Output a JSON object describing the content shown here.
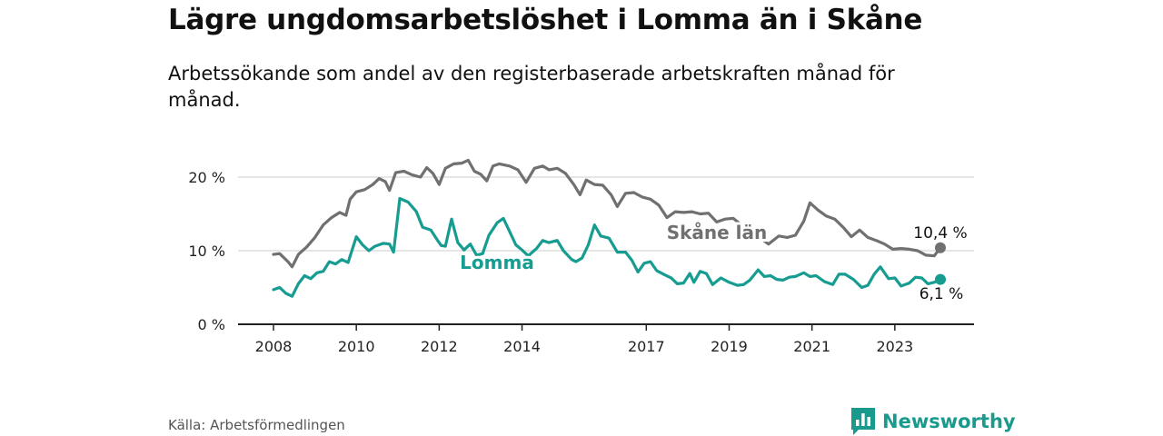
{
  "header": {
    "title": "Lägre ungdomsarbetslöshet i Lomma än i Skåne",
    "subtitle": "Arbetssökande som andel av den registerbaserade arbetskraften månad för månad."
  },
  "footer": {
    "source": "Källa: Arbetsförmedlingen",
    "brand": "Newsworthy"
  },
  "colors": {
    "lomma": "#169c90",
    "skane": "#707070",
    "grid": "#d6d6d6",
    "axis": "#222222",
    "brand": "#1a9a8c"
  },
  "chart_data": {
    "type": "line",
    "xlim": [
      2008,
      2024.5
    ],
    "ylim": [
      0,
      20
    ],
    "y_ticks": [
      0,
      10,
      20
    ],
    "y_tick_labels": [
      "0 %",
      "10 %",
      "20 %"
    ],
    "x_ticks": [
      2008,
      2010,
      2012,
      2014,
      2017,
      2019,
      2021,
      2023
    ],
    "x_tick_labels": [
      "2008",
      "2010",
      "2012",
      "2014",
      "2017",
      "2019",
      "2021",
      "2023"
    ],
    "series": [
      {
        "name": "Skåne län",
        "color_key": "skane",
        "end_label": "10,4 %",
        "points": [
          [
            2008.0,
            9.5
          ],
          [
            2008.15,
            9.6
          ],
          [
            2008.35,
            8.5
          ],
          [
            2008.45,
            7.8
          ],
          [
            2008.6,
            9.5
          ],
          [
            2008.8,
            10.5
          ],
          [
            2009.0,
            11.8
          ],
          [
            2009.2,
            13.5
          ],
          [
            2009.4,
            14.5
          ],
          [
            2009.6,
            15.2
          ],
          [
            2009.75,
            14.8
          ],
          [
            2009.85,
            17.0
          ],
          [
            2010.0,
            18.0
          ],
          [
            2010.2,
            18.3
          ],
          [
            2010.4,
            19.0
          ],
          [
            2010.55,
            19.8
          ],
          [
            2010.7,
            19.4
          ],
          [
            2010.8,
            18.2
          ],
          [
            2010.95,
            20.6
          ],
          [
            2011.15,
            20.8
          ],
          [
            2011.35,
            20.3
          ],
          [
            2011.55,
            20.0
          ],
          [
            2011.7,
            21.3
          ],
          [
            2011.85,
            20.5
          ],
          [
            2012.0,
            19.0
          ],
          [
            2012.15,
            21.2
          ],
          [
            2012.35,
            21.8
          ],
          [
            2012.55,
            21.9
          ],
          [
            2012.7,
            22.3
          ],
          [
            2012.85,
            20.8
          ],
          [
            2013.0,
            20.4
          ],
          [
            2013.15,
            19.5
          ],
          [
            2013.3,
            21.5
          ],
          [
            2013.45,
            21.8
          ],
          [
            2013.7,
            21.5
          ],
          [
            2013.9,
            21.0
          ],
          [
            2014.1,
            19.3
          ],
          [
            2014.3,
            21.2
          ],
          [
            2014.5,
            21.5
          ],
          [
            2014.65,
            21.0
          ],
          [
            2014.85,
            21.2
          ],
          [
            2015.05,
            20.5
          ],
          [
            2015.25,
            19.0
          ],
          [
            2015.4,
            17.6
          ],
          [
            2015.55,
            19.6
          ],
          [
            2015.75,
            19.0
          ],
          [
            2015.95,
            18.9
          ],
          [
            2016.15,
            17.6
          ],
          [
            2016.3,
            16.0
          ],
          [
            2016.5,
            17.8
          ],
          [
            2016.7,
            17.9
          ],
          [
            2016.9,
            17.3
          ],
          [
            2017.1,
            17.0
          ],
          [
            2017.3,
            16.2
          ],
          [
            2017.5,
            14.5
          ],
          [
            2017.7,
            15.3
          ],
          [
            2017.9,
            15.2
          ],
          [
            2018.1,
            15.3
          ],
          [
            2018.3,
            15.0
          ],
          [
            2018.5,
            15.1
          ],
          [
            2018.7,
            13.9
          ],
          [
            2018.9,
            14.3
          ],
          [
            2019.1,
            14.4
          ],
          [
            2019.3,
            13.5
          ],
          [
            2019.5,
            13.6
          ],
          [
            2019.7,
            12.0
          ],
          [
            2019.95,
            10.9
          ],
          [
            2020.2,
            12.0
          ],
          [
            2020.4,
            11.8
          ],
          [
            2020.6,
            12.1
          ],
          [
            2020.8,
            14.0
          ],
          [
            2020.95,
            16.5
          ],
          [
            2021.15,
            15.5
          ],
          [
            2021.35,
            14.7
          ],
          [
            2021.55,
            14.3
          ],
          [
            2021.75,
            13.2
          ],
          [
            2021.95,
            11.9
          ],
          [
            2022.15,
            12.8
          ],
          [
            2022.35,
            11.8
          ],
          [
            2022.55,
            11.4
          ],
          [
            2022.75,
            10.9
          ],
          [
            2022.95,
            10.2
          ],
          [
            2023.15,
            10.3
          ],
          [
            2023.35,
            10.2
          ],
          [
            2023.55,
            10.0
          ],
          [
            2023.75,
            9.4
          ],
          [
            2023.95,
            9.3
          ],
          [
            2024.1,
            10.4
          ]
        ]
      },
      {
        "name": "Lomma",
        "color_key": "lomma",
        "end_label": "6,1 %",
        "points": [
          [
            2008.0,
            4.7
          ],
          [
            2008.15,
            5.0
          ],
          [
            2008.3,
            4.2
          ],
          [
            2008.45,
            3.8
          ],
          [
            2008.6,
            5.5
          ],
          [
            2008.75,
            6.6
          ],
          [
            2008.9,
            6.2
          ],
          [
            2009.05,
            7.0
          ],
          [
            2009.2,
            7.2
          ],
          [
            2009.35,
            8.5
          ],
          [
            2009.5,
            8.2
          ],
          [
            2009.65,
            8.8
          ],
          [
            2009.8,
            8.4
          ],
          [
            2010.0,
            11.9
          ],
          [
            2010.15,
            10.8
          ],
          [
            2010.3,
            10.0
          ],
          [
            2010.45,
            10.6
          ],
          [
            2010.65,
            11.0
          ],
          [
            2010.8,
            10.9
          ],
          [
            2010.9,
            9.8
          ],
          [
            2011.05,
            17.1
          ],
          [
            2011.25,
            16.6
          ],
          [
            2011.45,
            15.3
          ],
          [
            2011.6,
            13.2
          ],
          [
            2011.8,
            12.8
          ],
          [
            2011.95,
            11.5
          ],
          [
            2012.05,
            10.7
          ],
          [
            2012.15,
            10.6
          ],
          [
            2012.3,
            14.3
          ],
          [
            2012.45,
            11.1
          ],
          [
            2012.6,
            10.1
          ],
          [
            2012.75,
            10.9
          ],
          [
            2012.9,
            9.4
          ],
          [
            2013.05,
            9.6
          ],
          [
            2013.2,
            12.1
          ],
          [
            2013.4,
            13.8
          ],
          [
            2013.55,
            14.4
          ],
          [
            2013.7,
            12.6
          ],
          [
            2013.85,
            10.8
          ],
          [
            2014.0,
            10.1
          ],
          [
            2014.15,
            9.3
          ],
          [
            2014.35,
            10.3
          ],
          [
            2014.5,
            11.4
          ],
          [
            2014.65,
            11.1
          ],
          [
            2014.85,
            11.4
          ],
          [
            2015.0,
            10.0
          ],
          [
            2015.2,
            8.8
          ],
          [
            2015.3,
            8.5
          ],
          [
            2015.45,
            9.0
          ],
          [
            2015.6,
            10.8
          ],
          [
            2015.75,
            13.5
          ],
          [
            2015.9,
            12.0
          ],
          [
            2016.1,
            11.7
          ],
          [
            2016.3,
            9.8
          ],
          [
            2016.5,
            9.8
          ],
          [
            2016.65,
            8.7
          ],
          [
            2016.8,
            7.1
          ],
          [
            2016.95,
            8.3
          ],
          [
            2017.1,
            8.5
          ],
          [
            2017.25,
            7.3
          ],
          [
            2017.45,
            6.7
          ],
          [
            2017.6,
            6.3
          ],
          [
            2017.75,
            5.5
          ],
          [
            2017.9,
            5.6
          ],
          [
            2018.05,
            6.9
          ],
          [
            2018.15,
            5.7
          ],
          [
            2018.3,
            7.2
          ],
          [
            2018.45,
            6.9
          ],
          [
            2018.6,
            5.4
          ],
          [
            2018.8,
            6.3
          ],
          [
            2019.0,
            5.7
          ],
          [
            2019.2,
            5.3
          ],
          [
            2019.35,
            5.4
          ],
          [
            2019.5,
            6.0
          ],
          [
            2019.7,
            7.4
          ],
          [
            2019.85,
            6.5
          ],
          [
            2020.0,
            6.6
          ],
          [
            2020.15,
            6.1
          ],
          [
            2020.3,
            6.0
          ],
          [
            2020.45,
            6.4
          ],
          [
            2020.6,
            6.5
          ],
          [
            2020.8,
            7.0
          ],
          [
            2020.95,
            6.5
          ],
          [
            2021.1,
            6.6
          ],
          [
            2021.3,
            5.8
          ],
          [
            2021.5,
            5.4
          ],
          [
            2021.65,
            6.8
          ],
          [
            2021.8,
            6.8
          ],
          [
            2022.0,
            6.1
          ],
          [
            2022.2,
            5.0
          ],
          [
            2022.35,
            5.3
          ],
          [
            2022.5,
            6.8
          ],
          [
            2022.65,
            7.8
          ],
          [
            2022.85,
            6.2
          ],
          [
            2023.0,
            6.3
          ],
          [
            2023.15,
            5.2
          ],
          [
            2023.35,
            5.6
          ],
          [
            2023.5,
            6.4
          ],
          [
            2023.65,
            6.3
          ],
          [
            2023.8,
            5.5
          ],
          [
            2023.95,
            5.7
          ],
          [
            2024.1,
            6.1
          ]
        ]
      }
    ]
  }
}
